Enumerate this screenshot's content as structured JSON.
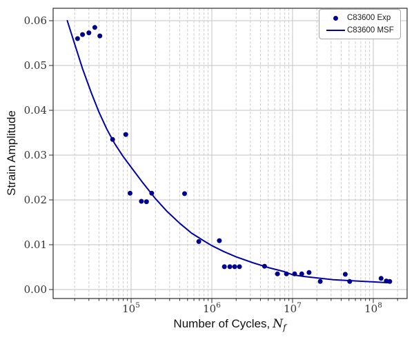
{
  "chart_data": {
    "type": "scatter",
    "title": "",
    "xlabel": {
      "prefix": "Number of Cycles,",
      "var": "N",
      "sub": "f"
    },
    "ylabel": "Strain Amplitude",
    "x_scale": "log",
    "xlim": [
      10800,
      262000000
    ],
    "ylim": [
      -0.002,
      0.0628
    ],
    "x_ticks": [
      {
        "value": 100000,
        "base": "10",
        "exp": "5"
      },
      {
        "value": 1000000,
        "base": "10",
        "exp": "6"
      },
      {
        "value": 10000000,
        "base": "10",
        "exp": "7"
      },
      {
        "value": 100000000,
        "base": "10",
        "exp": "8"
      }
    ],
    "y_ticks": [
      {
        "value": 0.0,
        "label": "0.00"
      },
      {
        "value": 0.01,
        "label": "0.01"
      },
      {
        "value": 0.02,
        "label": "0.02"
      },
      {
        "value": 0.03,
        "label": "0.03"
      },
      {
        "value": 0.04,
        "label": "0.04"
      },
      {
        "value": 0.05,
        "label": "0.05"
      },
      {
        "value": 0.06,
        "label": "0.06"
      }
    ],
    "grid": {
      "x_major": "solid",
      "x_minor": "dashed",
      "y_major": "solid",
      "y_minor": "none"
    },
    "legend_position": "upper right",
    "series": [
      {
        "name": "C83600 Exp",
        "type": "scatter",
        "color": "#00008B",
        "points": [
          [
            21700,
            0.056
          ],
          [
            25000,
            0.0569
          ],
          [
            30000,
            0.0573
          ],
          [
            35500,
            0.0585
          ],
          [
            41000,
            0.0566
          ],
          [
            59000,
            0.0335
          ],
          [
            86000,
            0.0346
          ],
          [
            97000,
            0.0215
          ],
          [
            134000,
            0.0197
          ],
          [
            155000,
            0.0196
          ],
          [
            180000,
            0.0215
          ],
          [
            460000,
            0.0214
          ],
          [
            690000,
            0.0107
          ],
          [
            1240000,
            0.0109
          ],
          [
            1430000,
            0.0051
          ],
          [
            1670000,
            0.0051
          ],
          [
            1920000,
            0.0051
          ],
          [
            2200000,
            0.0051
          ],
          [
            4500000,
            0.0052
          ],
          [
            6500000,
            0.0035
          ],
          [
            8400000,
            0.0035
          ],
          [
            10600000,
            0.0035
          ],
          [
            13000000,
            0.0035
          ],
          [
            16000000,
            0.0038
          ],
          [
            22000000,
            0.0018
          ],
          [
            45000000,
            0.0034
          ],
          [
            51000000,
            0.0018
          ],
          [
            125000000,
            0.0025
          ],
          [
            145000000,
            0.0019
          ],
          [
            160000000,
            0.0018
          ]
        ]
      },
      {
        "name": "C83600 MSF",
        "type": "line",
        "color": "#0000A8",
        "points": [
          [
            16200,
            0.06
          ],
          [
            20000,
            0.0548
          ],
          [
            25000,
            0.0493
          ],
          [
            32000,
            0.044
          ],
          [
            40000,
            0.0396
          ],
          [
            50000,
            0.0358
          ],
          [
            63000,
            0.0325
          ],
          [
            79000,
            0.0298
          ],
          [
            100000,
            0.0273
          ],
          [
            140000,
            0.0238
          ],
          [
            200000,
            0.0203
          ],
          [
            280000,
            0.0174
          ],
          [
            400000,
            0.0148
          ],
          [
            560000,
            0.0126
          ],
          [
            790000,
            0.0109
          ],
          [
            1000000,
            0.0098
          ],
          [
            1400000,
            0.0085
          ],
          [
            2000000,
            0.0073
          ],
          [
            3200000,
            0.006
          ],
          [
            5000000,
            0.0049
          ],
          [
            7900000,
            0.004
          ],
          [
            10000000,
            0.0033
          ],
          [
            14000000,
            0.0029
          ],
          [
            20000000,
            0.0026
          ],
          [
            32000000,
            0.0022
          ],
          [
            50000000,
            0.002
          ],
          [
            79000000,
            0.0018
          ],
          [
            100000000,
            0.0017
          ],
          [
            160000000,
            0.0015
          ]
        ]
      }
    ]
  },
  "colors": {
    "background": "#ffffff",
    "grid_major": "#c3c3c3",
    "grid_minor": "#cccccc",
    "spine": "#2b2b2b",
    "tick_label": "#333333"
  }
}
